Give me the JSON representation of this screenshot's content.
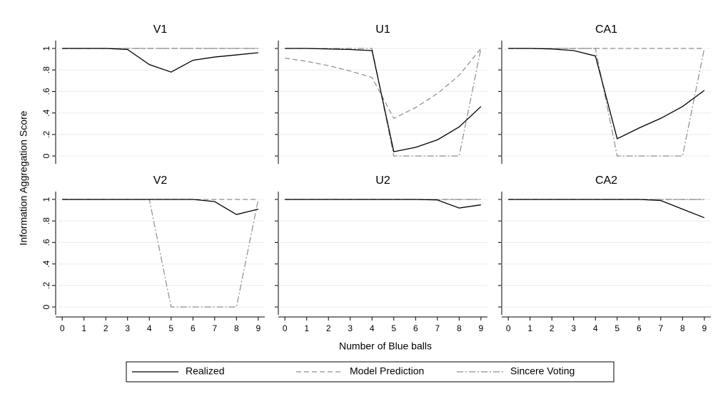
{
  "ylabel": "Information Aggregation Score",
  "xlabel": "Number of Blue balls",
  "xlim": [
    -0.3,
    9.3
  ],
  "ylim": [
    0,
    1
  ],
  "xticks": [
    0,
    1,
    2,
    3,
    4,
    5,
    6,
    7,
    8,
    9
  ],
  "yticks": [
    0,
    {
      "value": 0.2,
      "label": ".2"
    },
    {
      "value": 0.4,
      "label": ".4"
    },
    {
      "value": 0.6,
      "label": ".6"
    },
    {
      "value": 0.8,
      "label": ".8"
    },
    1
  ],
  "grid": true,
  "legend": [
    {
      "name": "Realized",
      "color": "#000000",
      "dash": "solid"
    },
    {
      "name": "Model Prediction",
      "color": "#8c8c8c",
      "dash": "dashed"
    },
    {
      "name": "Sincere Voting",
      "color": "#8c8c8c",
      "dash": "dashdot"
    }
  ],
  "chart_data": [
    {
      "type": "line",
      "title": "V1",
      "x": [
        0,
        1,
        2,
        3,
        4,
        5,
        6,
        7,
        8,
        9
      ],
      "series": [
        {
          "values": [
            1,
            1,
            1,
            0.99,
            0.85,
            0.78,
            0.89,
            0.92,
            0.94,
            0.96
          ]
        },
        {
          "values": [
            1,
            1,
            1,
            1,
            1,
            1,
            1,
            1,
            1,
            1
          ]
        },
        {
          "values": [
            1,
            1,
            1,
            1,
            1,
            1,
            1,
            1,
            1,
            1
          ]
        }
      ]
    },
    {
      "type": "line",
      "title": "U1",
      "x": [
        0,
        1,
        2,
        3,
        4,
        5,
        6,
        7,
        8,
        9
      ],
      "series": [
        {
          "values": [
            1,
            1,
            0.995,
            0.99,
            0.98,
            0.04,
            0.08,
            0.15,
            0.27,
            0.46
          ]
        },
        {
          "values": [
            0.91,
            0.88,
            0.84,
            0.79,
            0.73,
            0.35,
            0.45,
            0.58,
            0.75,
            1
          ]
        },
        {
          "values": [
            1,
            1,
            1,
            1,
            1,
            0,
            0,
            0,
            0,
            1
          ]
        }
      ]
    },
    {
      "type": "line",
      "title": "CA1",
      "x": [
        0,
        1,
        2,
        3,
        4,
        5,
        6,
        7,
        8,
        9
      ],
      "series": [
        {
          "values": [
            1,
            1,
            0.995,
            0.98,
            0.93,
            0.16,
            0.26,
            0.35,
            0.46,
            0.61
          ]
        },
        {
          "values": [
            1,
            1,
            1,
            1,
            1,
            1,
            1,
            1,
            1,
            1
          ]
        },
        {
          "values": [
            1,
            1,
            1,
            1,
            1,
            0,
            0,
            0,
            0,
            1
          ]
        }
      ]
    },
    {
      "type": "line",
      "title": "V2",
      "x": [
        0,
        1,
        2,
        3,
        4,
        5,
        6,
        7,
        8,
        9
      ],
      "series": [
        {
          "values": [
            1,
            1,
            1,
            1,
            1,
            1,
            1,
            0.98,
            0.86,
            0.91
          ]
        },
        {
          "values": [
            1,
            1,
            1,
            1,
            1,
            1,
            1,
            1,
            1,
            1
          ]
        },
        {
          "values": [
            1,
            1,
            1,
            1,
            1,
            0,
            0,
            0,
            0,
            1
          ]
        }
      ]
    },
    {
      "type": "line",
      "title": "U2",
      "x": [
        0,
        1,
        2,
        3,
        4,
        5,
        6,
        7,
        8,
        9
      ],
      "series": [
        {
          "values": [
            1,
            1,
            1,
            1,
            1,
            1,
            1,
            0.995,
            0.92,
            0.95
          ]
        },
        {
          "values": [
            1,
            1,
            1,
            1,
            1,
            1,
            1,
            1,
            1,
            1
          ]
        },
        {
          "values": [
            1,
            1,
            1,
            1,
            1,
            1,
            1,
            1,
            1,
            1
          ]
        }
      ]
    },
    {
      "type": "line",
      "title": "CA2",
      "x": [
        0,
        1,
        2,
        3,
        4,
        5,
        6,
        7,
        8,
        9
      ],
      "series": [
        {
          "values": [
            1,
            1,
            1,
            1,
            1,
            1,
            1,
            0.99,
            0.91,
            0.83
          ]
        },
        {
          "values": [
            1,
            1,
            1,
            1,
            1,
            1,
            1,
            1,
            1,
            1
          ]
        },
        {
          "values": [
            1,
            1,
            1,
            1,
            1,
            1,
            1,
            1,
            1,
            1
          ]
        }
      ]
    }
  ]
}
